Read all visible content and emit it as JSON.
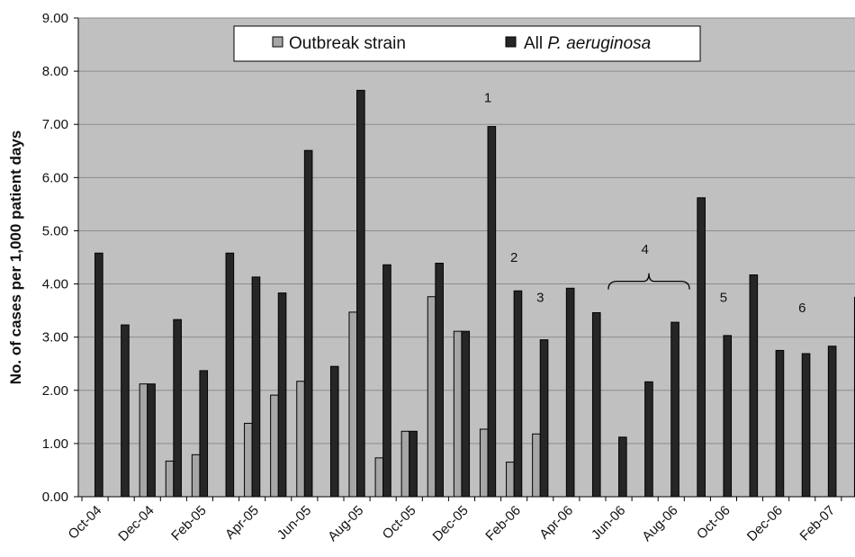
{
  "chart_data": {
    "type": "bar",
    "categories": [
      "Oct-04",
      "Nov-04",
      "Dec-04",
      "Jan-05",
      "Feb-05",
      "Mar-05",
      "Apr-05",
      "May-05",
      "Jun-05",
      "Jul-05",
      "Aug-05",
      "Sep-05",
      "Oct-05",
      "Nov-05",
      "Dec-05",
      "Jan-06",
      "Feb-06",
      "Mar-06",
      "Apr-06",
      "May-06",
      "Jun-06",
      "Jul-06",
      "Aug-06",
      "Sep-06",
      "Oct-06",
      "Nov-06",
      "Dec-06",
      "Jan-07",
      "Feb-07",
      "Mar-07"
    ],
    "tick_labels": [
      "Oct-04",
      "Dec-04",
      "Feb-05",
      "Apr-05",
      "Jun-05",
      "Aug-05",
      "Oct-05",
      "Dec-05",
      "Feb-06",
      "Apr-06",
      "Jun-06",
      "Aug-06",
      "Oct-06",
      "Dec-06",
      "Feb-07"
    ],
    "series": [
      {
        "name": "Outbreak strain",
        "color": "#a6a6a6",
        "values": [
          0,
          0,
          2.12,
          0.67,
          0.79,
          0,
          1.38,
          1.91,
          2.17,
          0,
          3.47,
          0.73,
          1.23,
          3.76,
          3.11,
          1.27,
          0.65,
          1.18,
          0,
          0,
          0,
          0,
          0,
          0,
          0,
          0,
          0,
          0,
          0,
          0
        ]
      },
      {
        "name": "All P. aeruginosa",
        "name_prefix": "All ",
        "name_italic": "P. aeruginosa",
        "color": "#262626",
        "values": [
          4.58,
          3.23,
          2.12,
          3.33,
          2.37,
          4.58,
          4.13,
          3.83,
          6.51,
          2.45,
          7.64,
          4.36,
          1.23,
          4.39,
          3.11,
          6.96,
          3.87,
          2.95,
          3.92,
          3.46,
          1.12,
          2.16,
          3.28,
          5.62,
          3.03,
          4.17,
          2.75,
          2.69,
          2.83,
          3.75
        ]
      }
    ],
    "ylabel": "No. of cases per 1,000 patient days",
    "ylim": [
      0,
      9
    ],
    "yticks": [
      "0.00",
      "1.00",
      "2.00",
      "3.00",
      "4.00",
      "5.00",
      "6.00",
      "7.00",
      "8.00",
      "9.00"
    ],
    "grid": true,
    "legend_position": "top",
    "background_color": "#c0c0c0",
    "annotations": [
      {
        "text": "1",
        "x": 15.5,
        "y": 7.5
      },
      {
        "text": "2",
        "x": 16.5,
        "y": 4.5
      },
      {
        "text": "3",
        "x": 17.5,
        "y": 3.75
      },
      {
        "text": "4",
        "x": 21.5,
        "y": 4.65
      },
      {
        "text": "5",
        "x": 24.5,
        "y": 3.75
      },
      {
        "text": "6",
        "x": 27.5,
        "y": 3.55
      }
    ],
    "brace": {
      "x_start": 20.1,
      "x_end": 23.2,
      "y": 4.05
    }
  }
}
